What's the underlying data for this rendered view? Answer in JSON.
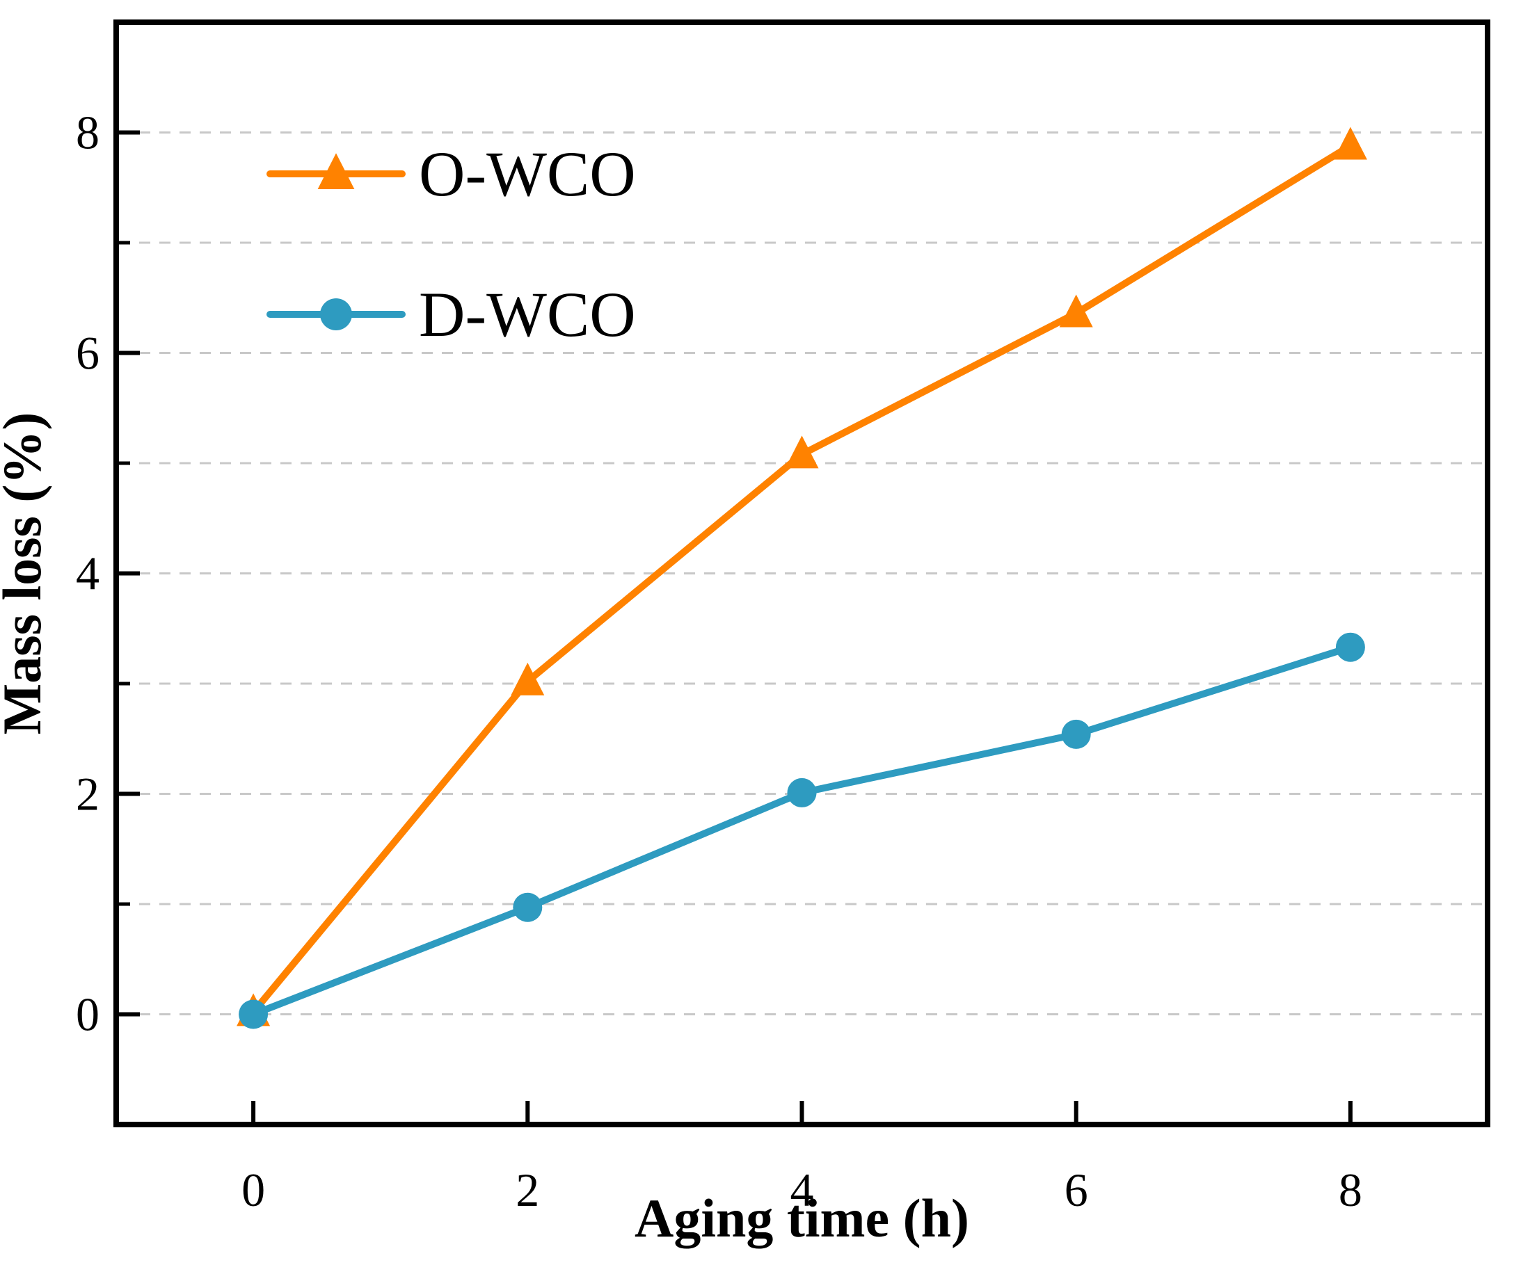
{
  "chart_data": {
    "type": "line",
    "title": "",
    "xlabel": "Aging time (h)",
    "ylabel": "Mass loss (%)",
    "xlim": [
      -1,
      9
    ],
    "ylim": [
      -1,
      9
    ],
    "x_ticks": [
      0,
      2,
      4,
      6,
      8
    ],
    "y_ticks_major": [
      0,
      2,
      4,
      6,
      8
    ],
    "y_ticks_minor": [
      1,
      3,
      5,
      7
    ],
    "gridlines_y": [
      0,
      1,
      2,
      3,
      4,
      5,
      6,
      7,
      8
    ],
    "grid_style": "dashed-horizontal",
    "legend_position": "upper-left-inside",
    "x": [
      0,
      2,
      4,
      6,
      8
    ],
    "series": [
      {
        "name": "O-WCO",
        "marker": "triangle",
        "color": "#FF8200",
        "values": [
          0.02,
          3.02,
          5.08,
          6.36,
          7.88
        ]
      },
      {
        "name": "D-WCO",
        "marker": "circle",
        "color": "#2E9BC0",
        "values": [
          0.0,
          0.97,
          2.01,
          2.54,
          3.33
        ]
      }
    ],
    "colors": {
      "grid": "#C8C8C8",
      "axis": "#000000",
      "text": "#000000"
    }
  }
}
